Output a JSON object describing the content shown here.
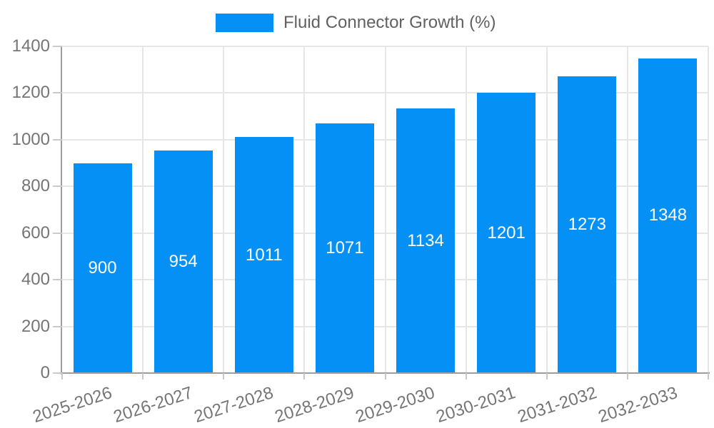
{
  "chart_data": {
    "type": "bar",
    "title": "",
    "legend_label": "Fluid Connector Growth (%)",
    "legend_position": "top-center",
    "categories": [
      "2025-2026",
      "2026-2027",
      "2027-2028",
      "2028-2029",
      "2029-2030",
      "2030-2031",
      "2031-2032",
      "2032-2033"
    ],
    "values": [
      900,
      954,
      1011,
      1071,
      1134,
      1201,
      1273,
      1348
    ],
    "xlabel": "",
    "ylabel": "",
    "ylim": [
      0,
      1400
    ],
    "yticks": [
      0,
      200,
      400,
      600,
      800,
      1000,
      1200,
      1400
    ],
    "grid": true,
    "colors": {
      "bar": "#0590f5",
      "value_label": "#ffffff",
      "axis_label": "#757575",
      "legend_text": "#616161",
      "gridline": "#e6e6e6",
      "axis_line": "#9e9e9e",
      "tick": "#c9c9c9",
      "background": "#ffffff"
    }
  }
}
